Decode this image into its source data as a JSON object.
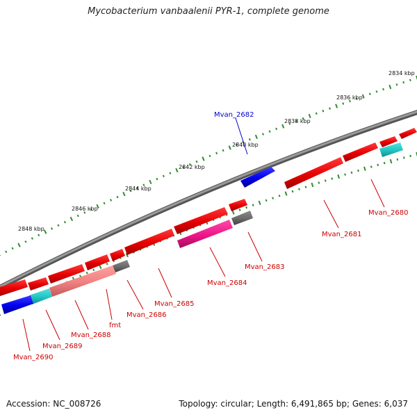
{
  "title": "Mycobacterium vanbaalenii PYR-1, complete genome",
  "footer": {
    "accession": "Accession: NC_008726",
    "summary": "Topology: circular; Length: 6,491,865 bp; Genes: 6,037"
  },
  "scale": {
    "ticks": [
      {
        "label": "2834 kbp",
        "kbp": 2834
      },
      {
        "label": "2836 kbp",
        "kbp": 2836
      },
      {
        "label": "2838 kbp",
        "kbp": 2838
      },
      {
        "label": "2840 kbp",
        "kbp": 2840
      },
      {
        "label": "2842 kbp",
        "kbp": 2842
      },
      {
        "label": "2844 kbp",
        "kbp": 2844
      },
      {
        "label": "2846 kbp",
        "kbp": 2846
      },
      {
        "label": "2848 kbp",
        "kbp": 2848
      }
    ]
  },
  "genes": [
    {
      "name": "Mvan_2680",
      "color": "#cc0000"
    },
    {
      "name": "Mvan_2681",
      "color": "#cc0000"
    },
    {
      "name": "Mvan_2682",
      "color": "#0000cc"
    },
    {
      "name": "Mvan_2683",
      "color": "#cc0000"
    },
    {
      "name": "Mvan_2684",
      "color": "#cc0000"
    },
    {
      "name": "Mvan_2685",
      "color": "#cc0000"
    },
    {
      "name": "Mvan_2686",
      "color": "#cc0000"
    },
    {
      "name": "fmt",
      "color": "#cc0000"
    },
    {
      "name": "Mvan_2688",
      "color": "#cc0000"
    },
    {
      "name": "Mvan_2689",
      "color": "#cc0000"
    },
    {
      "name": "Mvan_2690",
      "color": "#cc0000"
    }
  ],
  "colors": {
    "backbone": "#808080",
    "forward_feature": "#ff0000",
    "reverse_blue": "#0000ff",
    "cyan": "#33cccc",
    "magenta": "#ff1493",
    "pink": "#f08080",
    "gray": "#666666",
    "tick": "#2e8b2e"
  }
}
